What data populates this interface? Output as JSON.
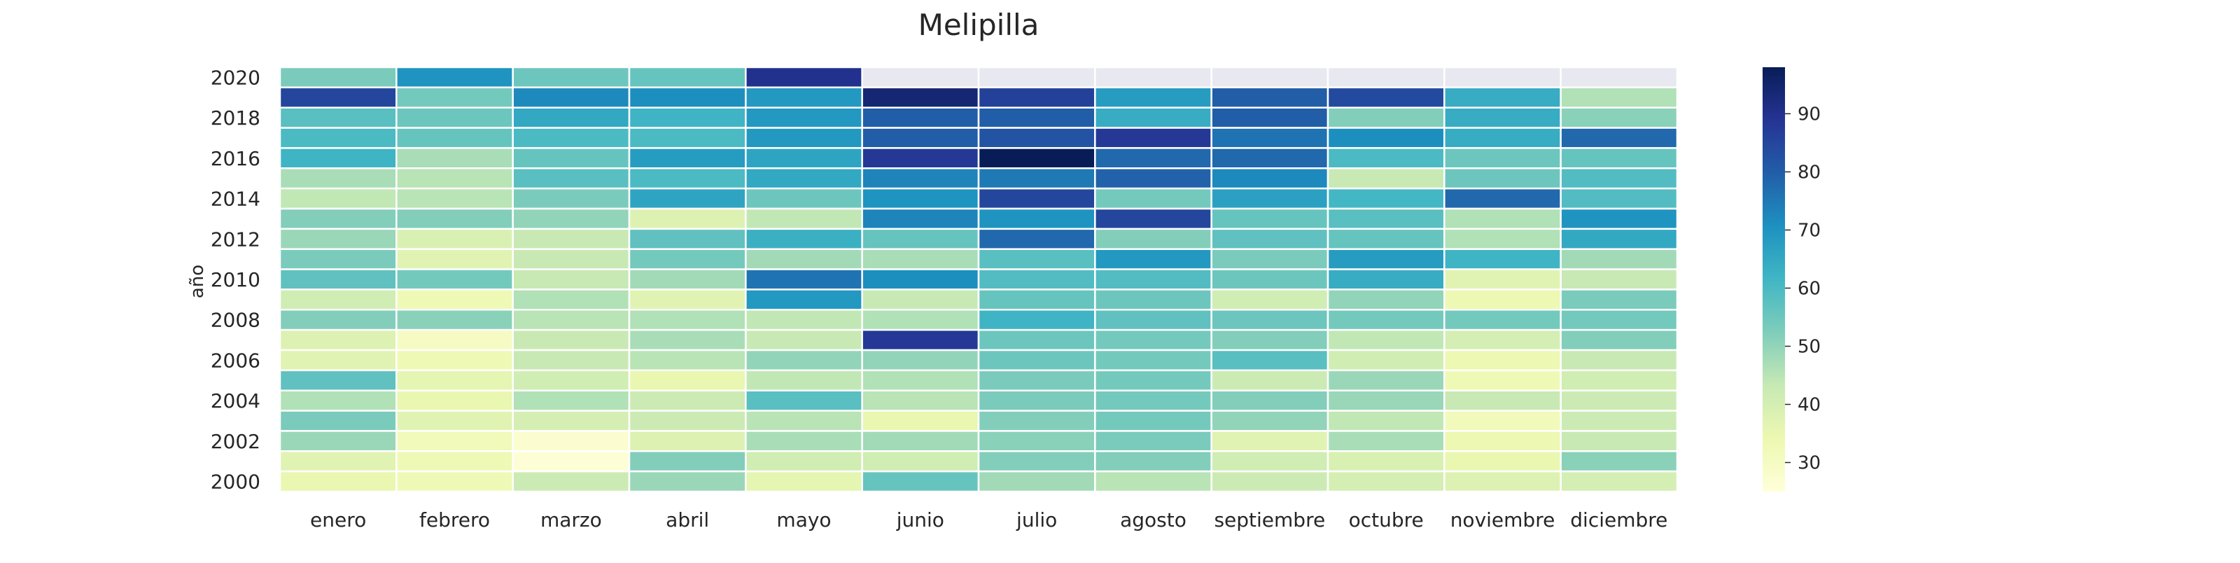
{
  "chart_data": {
    "type": "heatmap",
    "title": "Melipilla",
    "xlabel": "",
    "ylabel": "año",
    "x": [
      "enero",
      "febrero",
      "marzo",
      "abril",
      "mayo",
      "junio",
      "julio",
      "agosto",
      "septiembre",
      "octubre",
      "noviembre",
      "diciembre"
    ],
    "y": [
      2020,
      2019,
      2018,
      2017,
      2016,
      2015,
      2014,
      2013,
      2012,
      2011,
      2010,
      2009,
      2008,
      2007,
      2006,
      2005,
      2004,
      2003,
      2002,
      2001,
      2000
    ],
    "y_tick_labels": [
      "2020",
      "2018",
      "2016",
      "2014",
      "2012",
      "2010",
      "2008",
      "2006",
      "2004",
      "2002",
      "2000"
    ],
    "values": [
      [
        53,
        70,
        55,
        56,
        90,
        null,
        null,
        null,
        null,
        null,
        null,
        null
      ],
      [
        85,
        54,
        72,
        71,
        69,
        94,
        86,
        68,
        80,
        84,
        64,
        46
      ],
      [
        58,
        55,
        65,
        62,
        69,
        80,
        80,
        64,
        80,
        52,
        64,
        51
      ],
      [
        60,
        56,
        60,
        60,
        69,
        80,
        82,
        88,
        76,
        71,
        64,
        78
      ],
      [
        62,
        47,
        56,
        68,
        66,
        88,
        98,
        78,
        78,
        60,
        55,
        56
      ],
      [
        47,
        45,
        58,
        60,
        65,
        73,
        75,
        79,
        72,
        43,
        55,
        59
      ],
      [
        44,
        45,
        53,
        66,
        55,
        70,
        85,
        54,
        67,
        61,
        78,
        59
      ],
      [
        52,
        52,
        50,
        38,
        44,
        73,
        70,
        85,
        56,
        58,
        46,
        70
      ],
      [
        49,
        39,
        43,
        57,
        63,
        56,
        78,
        52,
        57,
        56,
        46,
        65
      ],
      [
        53,
        37,
        43,
        54,
        48,
        47,
        58,
        69,
        53,
        68,
        62,
        48
      ],
      [
        57,
        54,
        43,
        48,
        76,
        71,
        59,
        59,
        55,
        64,
        37,
        43
      ],
      [
        41,
        33,
        46,
        37,
        69,
        43,
        56,
        55,
        41,
        50,
        34,
        53
      ],
      [
        52,
        51,
        45,
        46,
        44,
        46,
        62,
        57,
        55,
        54,
        54,
        54
      ],
      [
        38,
        30,
        43,
        47,
        43,
        88,
        55,
        54,
        52,
        44,
        40,
        52
      ],
      [
        37,
        33,
        43,
        45,
        50,
        50,
        55,
        54,
        58,
        41,
        34,
        43
      ],
      [
        57,
        36,
        41,
        35,
        44,
        46,
        53,
        54,
        42,
        49,
        33,
        41
      ],
      [
        46,
        35,
        46,
        42,
        58,
        45,
        53,
        54,
        52,
        49,
        43,
        42
      ],
      [
        53,
        37,
        40,
        42,
        45,
        35,
        52,
        54,
        50,
        44,
        32,
        42
      ],
      [
        49,
        32,
        27,
        38,
        47,
        48,
        51,
        53,
        37,
        47,
        34,
        43
      ],
      [
        37,
        33,
        26,
        52,
        41,
        41,
        52,
        52,
        41,
        39,
        35,
        51
      ],
      [
        35,
        33,
        42,
        49,
        36,
        56,
        48,
        45,
        42,
        40,
        38,
        40
      ]
    ],
    "colormap": "YlGnBu",
    "missing_color": "#e8e8f1",
    "colorbar": {
      "min": 25,
      "max": 98,
      "ticks": [
        30,
        40,
        50,
        60,
        70,
        80,
        90
      ]
    }
  }
}
